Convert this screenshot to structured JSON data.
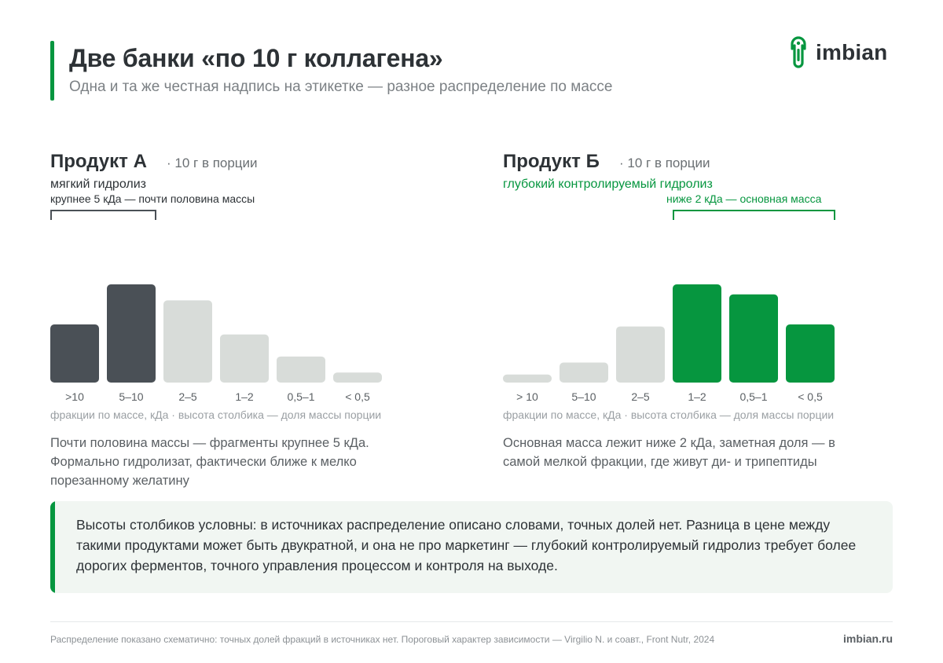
{
  "header": {
    "title": "Две банки «по 10 г коллагена»",
    "subtitle": "Одна и та же честная надпись на этикетке — разное распределение по массе",
    "logo_text": "imbian",
    "accent_color": "#06963f"
  },
  "panels": [
    {
      "name": "Продукт А",
      "portion": "· 10 г в порции",
      "method": "мягкий гидролиз",
      "bracket_label": "крупнее 5 кДа — почти половина массы",
      "axis_note": "фракции по массе, кДа · высота столбика — доля массы порции",
      "description": "Почти половина массы — фрагменты крупнее 5 кДа. Формально гидролизат, фактически ближе к мелко порезанному желатину"
    },
    {
      "name": "Продукт Б",
      "portion": "· 10 г в порции",
      "method": "глубокий контролируемый гидролиз",
      "bracket_label": "ниже 2 кДа — основная масса",
      "axis_note": "фракции по массе, кДа · высота столбика — доля массы порции",
      "description": "Основная масса лежит ниже 2 кДа, заметная доля — в самой мелкой фракции, где живут ди- и трипептиды"
    }
  ],
  "chart_data": [
    {
      "type": "bar",
      "categories": [
        ">10",
        "5–10",
        "2–5",
        "1–2",
        "0,5–1",
        "< 0,5"
      ],
      "values": [
        29,
        49,
        41,
        24,
        13,
        5
      ],
      "highlight": [
        true,
        true,
        false,
        false,
        false,
        false
      ],
      "highlight_color": "#4a5056",
      "base_color": "#d8dcd9",
      "title": "Продукт А",
      "xlabel": "фракции по массе, кДа",
      "ylabel": "",
      "grid": false
    },
    {
      "type": "bar",
      "categories": [
        "> 10",
        "5–10",
        "2–5",
        "1–2",
        "0,5–1",
        "< 0,5"
      ],
      "values": [
        4,
        10,
        28,
        49,
        44,
        29
      ],
      "highlight": [
        false,
        false,
        false,
        true,
        true,
        true
      ],
      "highlight_color": "#06963f",
      "base_color": "#d8dcd9",
      "title": "Продукт Б",
      "xlabel": "фракции по массе, кДа",
      "ylabel": "",
      "grid": false
    }
  ],
  "note": {
    "text": "Высоты столбиков условны: в источниках распределение описано словами, точных долей нет. Разница в цене между такими продуктами может быть двукратной, и она не про маркетинг — глубокий контролируемый гидролиз требует более дорогих ферментов, точного управления процессом и контроля на выходе."
  },
  "footer": {
    "source": "Распределение показано схематично: точных долей фракций в источниках нет. Пороговый характер зависимости — Virgilio N. и соавт., Front Nutr, 2024",
    "site": "imbian.ru"
  }
}
